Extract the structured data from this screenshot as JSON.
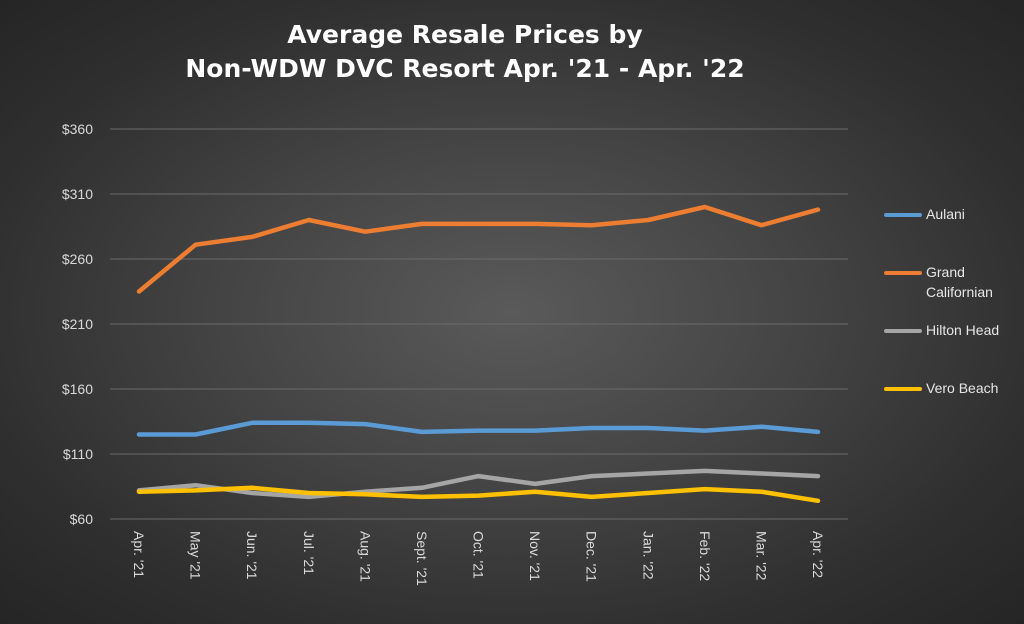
{
  "chart_data": {
    "type": "line",
    "title": "Average Resale Prices by Non-WDW DVC Resort Apr. '21 - Apr. '22",
    "title_lines": [
      "Average Resale Prices by",
      "Non-WDW DVC Resort Apr. '21 - Apr. '22"
    ],
    "categories": [
      "Apr. '21",
      "May '21",
      "Jun. '21",
      "Jul. '21",
      "Aug. '21",
      "Sept. '21",
      "Oct. '21",
      "Nov. '21",
      "Dec. '21",
      "Jan. '22",
      "Feb. '22",
      "Mar. '22",
      "Apr. '22"
    ],
    "y_ticks": [
      "$60",
      "$110",
      "$160",
      "$210",
      "$260",
      "$310",
      "$360"
    ],
    "ylim": [
      60,
      360
    ],
    "xlabel": "",
    "ylabel": "",
    "grid": true,
    "legend_position": "right",
    "series": [
      {
        "name": "Aulani",
        "color": "#5b9bd5",
        "values": [
          125,
          125,
          134,
          134,
          133,
          127,
          128,
          128,
          130,
          130,
          128,
          131,
          127
        ]
      },
      {
        "name": "Grand Californian",
        "color": "#ed7d31",
        "values": [
          235,
          271,
          277,
          290,
          281,
          287,
          287,
          287,
          286,
          290,
          300,
          286,
          298
        ]
      },
      {
        "name": "Hilton Head",
        "color": "#a5a5a5",
        "values": [
          82,
          86,
          80,
          77,
          81,
          84,
          93,
          87,
          93,
          95,
          97,
          95,
          93
        ]
      },
      {
        "name": "Vero Beach",
        "color": "#ffc000",
        "values": [
          81,
          82,
          84,
          80,
          79,
          77,
          78,
          81,
          77,
          80,
          83,
          81,
          74
        ]
      }
    ]
  }
}
